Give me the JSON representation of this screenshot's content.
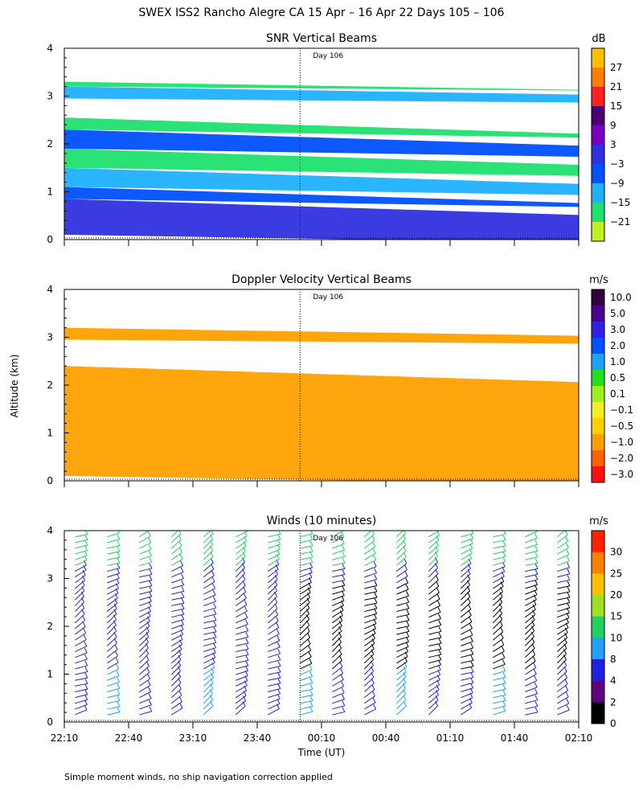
{
  "title": "SWEX ISS2 Rancho Alegre CA  15 Apr – 16 Apr 22 Days 105 – 106",
  "footnote": "Simple moment winds, no ship navigation correction applied",
  "chart_data": [
    {
      "type": "heatmap",
      "title": "SNR Vertical Beams",
      "ylabel": "Altitude (km)",
      "ylim": [
        0,
        4
      ],
      "yticks": [
        "0",
        "1",
        "2",
        "3",
        "4"
      ],
      "xlim_minutes": [
        0,
        240
      ],
      "xtick_minutes": [
        0,
        30,
        60,
        90,
        120,
        150,
        180,
        210,
        240
      ],
      "day_marker": {
        "label": "Day 106",
        "minute": 110
      },
      "colorbar": {
        "unit": "dB",
        "labels": [
          "27",
          "21",
          "15",
          "9",
          "3",
          "−3",
          "−9",
          "−15",
          "−21"
        ],
        "colors": [
          "#ffc000",
          "#ff8000",
          "#ff2020",
          "#4a0070",
          "#7a00c0",
          "#3030e0",
          "#0050ff",
          "#20b0ff",
          "#20e070",
          "#c0f020"
        ]
      },
      "bands_km": [
        {
          "bottom": 0.1,
          "top": 0.85,
          "level": "3"
        },
        {
          "bottom": 0.85,
          "top": 1.1,
          "level": "−3"
        },
        {
          "bottom": 1.1,
          "top": 1.5,
          "level": "−9"
        },
        {
          "bottom": 1.5,
          "top": 1.9,
          "level": "−15"
        },
        {
          "bottom": 1.9,
          "top": 2.3,
          "level": "−3"
        },
        {
          "bottom": 2.3,
          "top": 2.55,
          "level": "−15"
        },
        {
          "bottom": 2.95,
          "top": 3.2,
          "level": "−9"
        },
        {
          "bottom": 3.2,
          "top": 3.3,
          "level": "−15"
        }
      ]
    },
    {
      "type": "heatmap",
      "title": "Doppler Velocity Vertical Beams",
      "ylabel": "Altitude (km)",
      "ylim": [
        0,
        4
      ],
      "yticks": [
        "0",
        "1",
        "2",
        "3",
        "4"
      ],
      "xlim_minutes": [
        0,
        240
      ],
      "xtick_minutes": [
        0,
        30,
        60,
        90,
        120,
        150,
        180,
        210,
        240
      ],
      "day_marker": {
        "label": "Day 106",
        "minute": 110
      },
      "colorbar": {
        "unit": "m/s",
        "labels": [
          "10.0",
          "5.0",
          "3.0",
          "2.0",
          "1.0",
          "0.5",
          "0.1",
          "−0.1",
          "−0.5",
          "−1.0",
          "−2.0",
          "−3.0"
        ],
        "colors": [
          "#300040",
          "#4a0090",
          "#3020e0",
          "#0050ff",
          "#20a0ff",
          "#20e020",
          "#a0f020",
          "#f0f020",
          "#ffd000",
          "#ffa000",
          "#ff6000",
          "#ff1010"
        ]
      },
      "bands_km": [
        {
          "bottom": 0.1,
          "top": 2.4,
          "level": "−0.5"
        },
        {
          "bottom": 2.95,
          "top": 3.2,
          "level": "−0.5"
        }
      ]
    },
    {
      "type": "scatter",
      "title": "Winds (10 minutes)",
      "ylabel": "Altitude (km)",
      "xlabel": "Time (UT)",
      "ylim": [
        0,
        4
      ],
      "yticks": [
        "0",
        "1",
        "2",
        "3",
        "4"
      ],
      "xlim_minutes": [
        0,
        240
      ],
      "xtick_minutes": [
        0,
        30,
        60,
        90,
        120,
        150,
        180,
        210,
        240
      ],
      "xtick_labels": [
        "22:10",
        "22:40",
        "23:10",
        "23:40",
        "00:10",
        "00:40",
        "01:10",
        "01:40",
        "02:10"
      ],
      "day_marker": {
        "label": "Day 106",
        "minute": 110
      },
      "colorbar": {
        "unit": "m/s",
        "labels": [
          "30",
          "25",
          "20",
          "15",
          "10",
          "8",
          "4",
          "2",
          "0"
        ],
        "colors": [
          "#ff2000",
          "#ff8000",
          "#ffc000",
          "#a0e020",
          "#20d060",
          "#20a0ff",
          "#2020e0",
          "#600080",
          "#000000"
        ]
      },
      "barb_profiles_minutes": [
        5,
        20,
        35,
        50,
        65,
        80,
        95,
        110,
        125,
        140,
        155,
        170,
        185,
        200,
        215,
        230
      ]
    }
  ]
}
